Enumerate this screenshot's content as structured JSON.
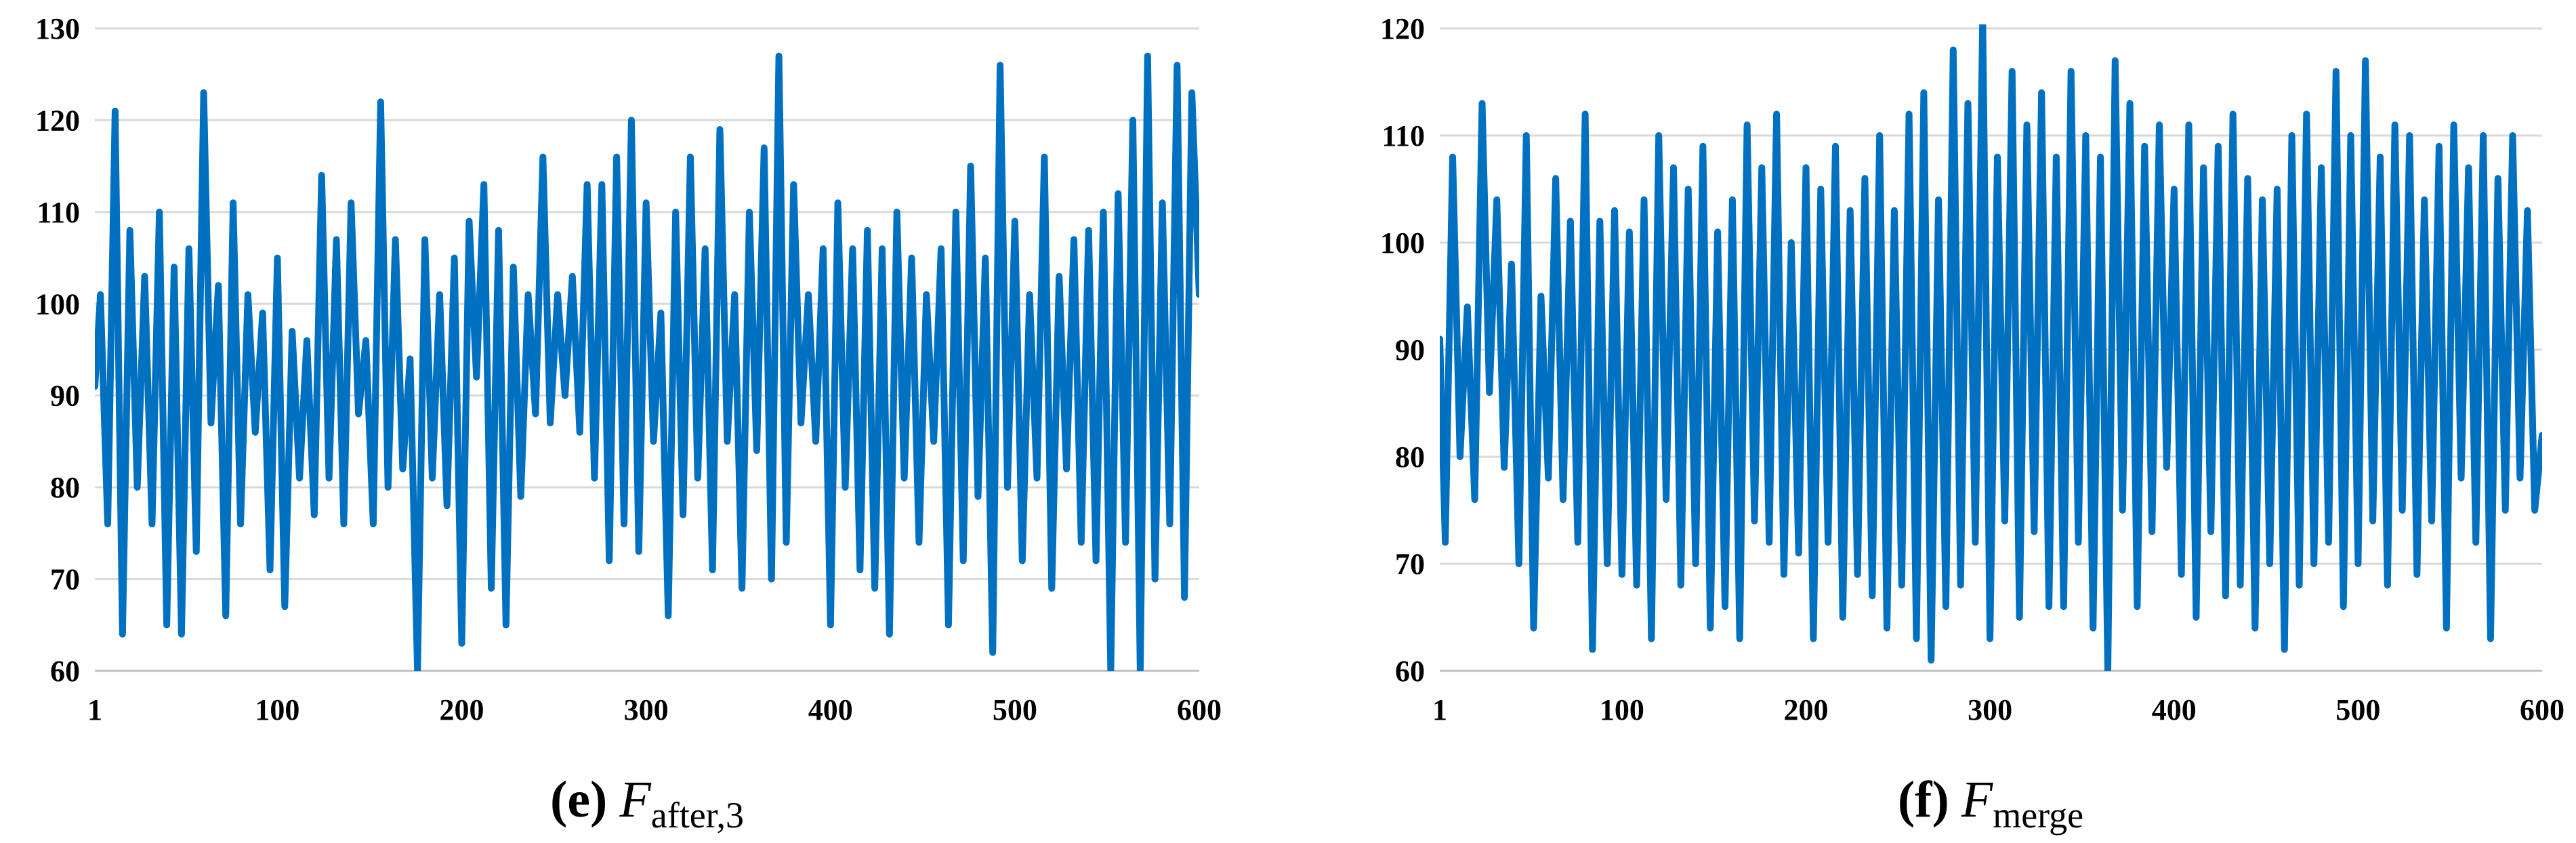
{
  "chart_data": [
    {
      "type": "line",
      "caption": {
        "letter": "(e)",
        "variable": "F",
        "subscript": "after,3"
      },
      "color": "#0070c0",
      "ylim": [
        60,
        130
      ],
      "yticks": [
        60,
        70,
        80,
        90,
        100,
        110,
        120,
        130
      ],
      "xlim": [
        1,
        600
      ],
      "xticks": [
        1,
        100,
        200,
        300,
        400,
        500,
        600
      ],
      "grid": "horizontal",
      "legend": "none",
      "series": [
        {
          "x": [
            1,
            4,
            8,
            12,
            16,
            20,
            24,
            28,
            32,
            36,
            40,
            44,
            48,
            52,
            56,
            60,
            64,
            68,
            72,
            76,
            80,
            84,
            88,
            92,
            96,
            100,
            104,
            108,
            112,
            116,
            120,
            124,
            128,
            132,
            136,
            140,
            144,
            148,
            152,
            156,
            160,
            164,
            168,
            172,
            176,
            180,
            184,
            188,
            192,
            196,
            200,
            204,
            208,
            212,
            216,
            220,
            224,
            228,
            232,
            236,
            240,
            244,
            248,
            252,
            256,
            260,
            264,
            268,
            272,
            276,
            280,
            284,
            288,
            292,
            296,
            300,
            304,
            308,
            312,
            316,
            320,
            324,
            328,
            332,
            336,
            340,
            344,
            348,
            352,
            356,
            360,
            364,
            368,
            372,
            376,
            380,
            384,
            388,
            392,
            396,
            400,
            404,
            408,
            412,
            416,
            420,
            424,
            428,
            432,
            436,
            440,
            444,
            448,
            452,
            456,
            460,
            464,
            468,
            472,
            476,
            480,
            484,
            488,
            492,
            496,
            500,
            504,
            508,
            512,
            516,
            520,
            524,
            528,
            532,
            536,
            540,
            544,
            548,
            552,
            556,
            560,
            564,
            568,
            572,
            576,
            580,
            584,
            588,
            592,
            596,
            600
          ],
          "y": [
            91,
            101,
            76,
            121,
            64,
            108,
            80,
            103,
            76,
            110,
            65,
            104,
            64,
            106,
            73,
            123,
            87,
            102,
            66,
            111,
            76,
            101,
            86,
            99,
            71,
            105,
            67,
            97,
            81,
            96,
            77,
            114,
            81,
            107,
            76,
            111,
            88,
            96,
            76,
            122,
            80,
            107,
            82,
            94,
            60,
            107,
            81,
            101,
            78,
            105,
            63,
            109,
            92,
            113,
            69,
            108,
            65,
            104,
            79,
            101,
            88,
            116,
            87,
            101,
            90,
            103,
            86,
            113,
            81,
            113,
            72,
            116,
            76,
            120,
            73,
            111,
            85,
            99,
            66,
            110,
            77,
            116,
            81,
            106,
            71,
            119,
            85,
            101,
            69,
            110,
            84,
            117,
            70,
            127,
            74,
            113,
            87,
            101,
            85,
            106,
            65,
            111,
            80,
            106,
            71,
            108,
            69,
            106,
            64,
            110,
            81,
            105,
            74,
            101,
            85,
            106,
            65,
            110,
            72,
            115,
            79,
            105,
            62,
            126,
            80,
            109,
            72,
            101,
            81,
            116,
            69,
            103,
            82,
            107,
            74,
            108,
            72,
            110,
            60,
            112,
            74,
            120,
            60,
            127,
            70,
            111,
            76,
            126,
            68,
            123,
            101
          ]
        }
      ]
    },
    {
      "type": "line",
      "caption": {
        "letter": "(f)",
        "variable": "F",
        "subscript": "merge"
      },
      "color": "#0070c0",
      "ylim": [
        60,
        120
      ],
      "yticks": [
        60,
        70,
        80,
        90,
        100,
        110,
        120
      ],
      "xlim": [
        1,
        600
      ],
      "xticks": [
        1,
        100,
        200,
        300,
        400,
        500,
        600
      ],
      "grid": "horizontal",
      "legend": "none",
      "series": [
        {
          "x": [
            1,
            4,
            8,
            12,
            16,
            20,
            24,
            28,
            32,
            36,
            40,
            44,
            48,
            52,
            56,
            60,
            64,
            68,
            72,
            76,
            80,
            84,
            88,
            92,
            96,
            100,
            104,
            108,
            112,
            116,
            120,
            124,
            128,
            132,
            136,
            140,
            144,
            148,
            152,
            156,
            160,
            164,
            168,
            172,
            176,
            180,
            184,
            188,
            192,
            196,
            200,
            204,
            208,
            212,
            216,
            220,
            224,
            228,
            232,
            236,
            240,
            244,
            248,
            252,
            256,
            260,
            264,
            268,
            272,
            276,
            280,
            284,
            288,
            292,
            296,
            300,
            304,
            308,
            312,
            316,
            320,
            324,
            328,
            332,
            336,
            340,
            344,
            348,
            352,
            356,
            360,
            364,
            368,
            372,
            376,
            380,
            384,
            388,
            392,
            396,
            400,
            404,
            408,
            412,
            416,
            420,
            424,
            428,
            432,
            436,
            440,
            444,
            448,
            452,
            456,
            460,
            464,
            468,
            472,
            476,
            480,
            484,
            488,
            492,
            496,
            500,
            504,
            508,
            512,
            516,
            520,
            524,
            528,
            532,
            536,
            540,
            544,
            548,
            552,
            556,
            560,
            564,
            568,
            572,
            576,
            580,
            584,
            588,
            592,
            596,
            600
          ],
          "y": [
            91,
            72,
            108,
            80,
            94,
            76,
            113,
            86,
            104,
            79,
            98,
            70,
            110,
            64,
            95,
            78,
            106,
            76,
            102,
            72,
            112,
            62,
            102,
            70,
            103,
            69,
            101,
            68,
            104,
            63,
            110,
            76,
            107,
            68,
            105,
            70,
            109,
            64,
            101,
            66,
            104,
            63,
            111,
            74,
            107,
            72,
            112,
            69,
            100,
            71,
            107,
            63,
            105,
            72,
            109,
            65,
            103,
            69,
            106,
            67,
            110,
            64,
            103,
            68,
            112,
            63,
            114,
            61,
            104,
            66,
            118,
            68,
            113,
            72,
            121,
            63,
            108,
            74,
            116,
            65,
            111,
            73,
            114,
            66,
            108,
            66,
            116,
            72,
            110,
            64,
            108,
            60,
            117,
            75,
            113,
            66,
            109,
            73,
            111,
            79,
            105,
            69,
            111,
            65,
            107,
            73,
            109,
            67,
            112,
            68,
            106,
            64,
            104,
            70,
            105,
            62,
            110,
            68,
            112,
            70,
            107,
            72,
            116,
            66,
            110,
            70,
            117,
            74,
            108,
            68,
            111,
            75,
            110,
            69,
            104,
            74,
            109,
            64,
            111,
            78,
            107,
            72,
            110,
            63,
            106,
            75,
            110,
            78,
            103,
            75,
            82
          ]
        }
      ]
    }
  ]
}
